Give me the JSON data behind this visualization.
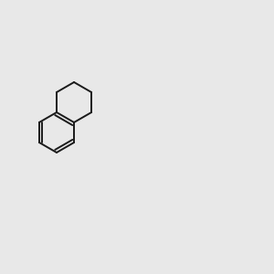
{
  "background_color": "#e8e8e8",
  "bond_color": "#1a1a1a",
  "nitrogen_color": "#0000cc",
  "oxygen_color": "#cc0000",
  "carbon_color": "#1a1a1a",
  "h_color": "#4a8080",
  "font_size": 7.5,
  "lw": 1.4
}
